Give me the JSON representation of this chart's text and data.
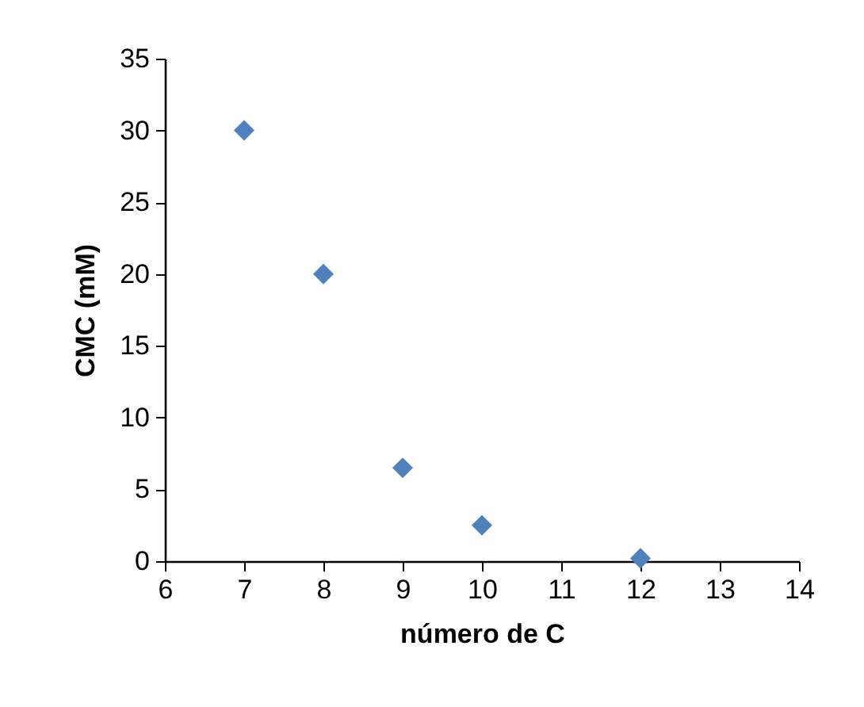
{
  "chart_data": {
    "type": "scatter",
    "xlabel": "número de C",
    "ylabel": "CMC (mM)",
    "x": [
      7,
      8,
      9,
      10,
      12
    ],
    "series": [
      {
        "color": "#4f81bd",
        "values": [
          30,
          20,
          6.5,
          2.5,
          0.2
        ]
      }
    ],
    "xlim": [
      6,
      14
    ],
    "xticks": [
      6,
      7,
      8,
      9,
      10,
      11,
      12,
      13,
      14
    ],
    "ylim": [
      0,
      35
    ],
    "yticks": [
      0,
      5,
      10,
      15,
      20,
      25,
      30,
      35
    ],
    "marker": "diamond",
    "grid": false
  }
}
